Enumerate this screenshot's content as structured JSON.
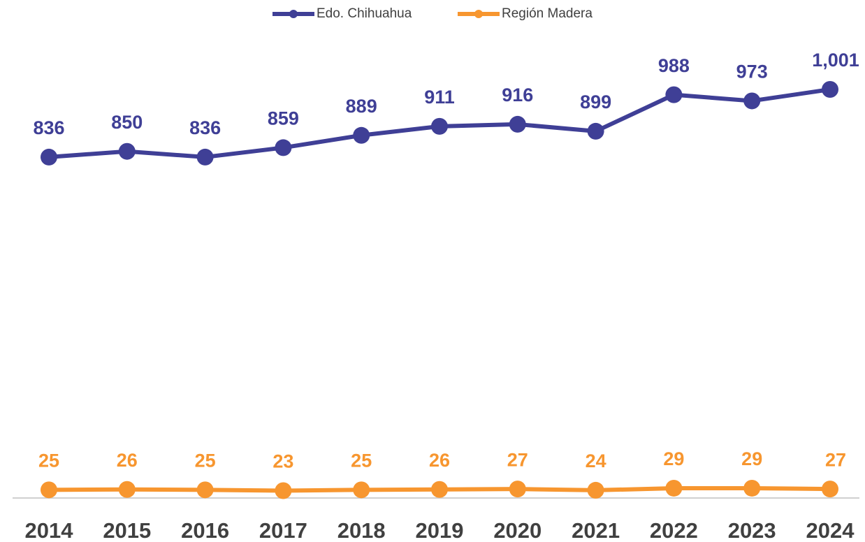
{
  "chart_data": {
    "type": "line",
    "categories": [
      "2014",
      "2015",
      "2016",
      "2017",
      "2018",
      "2019",
      "2020",
      "2021",
      "2022",
      "2023",
      "2024"
    ],
    "series": [
      {
        "name": "Edo. Chihuahua",
        "color": "#3f3f96",
        "values": [
          836,
          850,
          836,
          859,
          889,
          911,
          916,
          899,
          988,
          973,
          1001
        ],
        "value_labels": [
          "836",
          "850",
          "836",
          "859",
          "889",
          "911",
          "916",
          "899",
          "988",
          "973",
          "1,001"
        ]
      },
      {
        "name": "Región Madera",
        "color": "#f7962f",
        "values": [
          25,
          26,
          25,
          23,
          25,
          26,
          27,
          24,
          29,
          29,
          27
        ]
      }
    ],
    "legend": "top"
  }
}
